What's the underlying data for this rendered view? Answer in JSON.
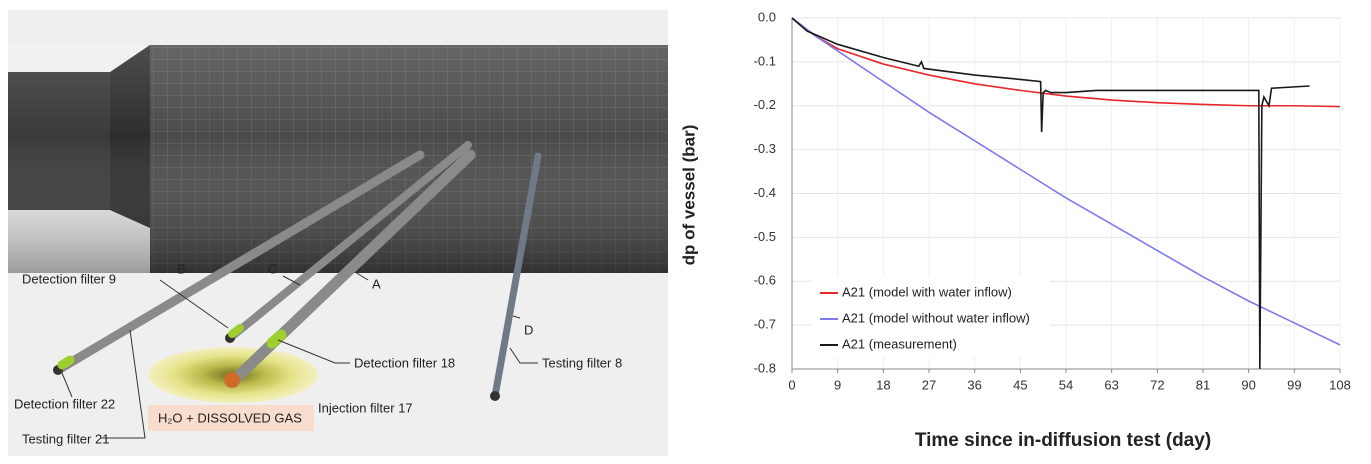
{
  "diagram": {
    "labels": [
      "Detection filter 9",
      "B",
      "C",
      "A",
      "D",
      "Detection filter 18",
      "Testing filter 8",
      "Detection filter 22",
      "Injection filter 17",
      "H₂O + DISSOLVED GAS",
      "Testing filter 21"
    ]
  },
  "chart_data": {
    "type": "line",
    "x_label": "Time since in-diffusion test (day)",
    "y_label": "dp of  vessel (bar)",
    "xlim": [
      0,
      108
    ],
    "xticks": [
      0,
      9,
      18,
      27,
      36,
      45,
      54,
      63,
      72,
      81,
      90,
      99,
      108
    ],
    "ylim": [
      -0.8,
      0
    ],
    "yticks": [
      {
        "value": 0,
        "label": "0.0"
      },
      -0.1,
      -0.2,
      -0.3,
      -0.4,
      -0.5,
      -0.6,
      -0.7,
      -0.8
    ],
    "grid": true,
    "legend": "lower left",
    "series": [
      {
        "name": "A21 (model with water inflow)",
        "color": "#e8262b",
        "x": [
          0,
          4.5,
          9,
          18,
          27,
          36,
          45,
          54,
          63,
          72,
          81,
          90,
          99,
          108
        ],
        "values": [
          0,
          -0.04,
          -0.07,
          -0.105,
          -0.13,
          -0.15,
          -0.165,
          -0.178,
          -0.187,
          -0.193,
          -0.197,
          -0.2,
          -0.2,
          -0.202
        ]
      },
      {
        "name": "A21 (model without water inflow)",
        "color": "#7b7bef",
        "x": [
          0,
          4.5,
          9,
          18,
          27,
          36,
          45,
          54,
          63,
          72,
          81,
          90,
          99,
          108
        ],
        "values": [
          0,
          -0.04,
          -0.075,
          -0.145,
          -0.215,
          -0.28,
          -0.345,
          -0.41,
          -0.47,
          -0.53,
          -0.59,
          -0.645,
          -0.695,
          -0.745
        ]
      },
      {
        "name": "A21 (measurement)",
        "color": "#1a1a1a",
        "x": [
          0,
          3,
          9,
          18,
          25,
          25.5,
          26,
          36,
          45,
          49,
          49.2,
          49.5,
          50,
          51,
          54,
          60,
          72,
          90,
          92,
          92.2,
          92.6,
          93,
          94,
          94.5,
          102
        ],
        "values": [
          0,
          -0.03,
          -0.06,
          -0.09,
          -0.11,
          -0.1,
          -0.115,
          -0.13,
          -0.14,
          -0.145,
          -0.26,
          -0.17,
          -0.165,
          -0.17,
          -0.17,
          -0.165,
          -0.165,
          -0.165,
          -0.165,
          -0.8,
          -0.2,
          -0.18,
          -0.2,
          -0.16,
          -0.155
        ]
      }
    ]
  }
}
